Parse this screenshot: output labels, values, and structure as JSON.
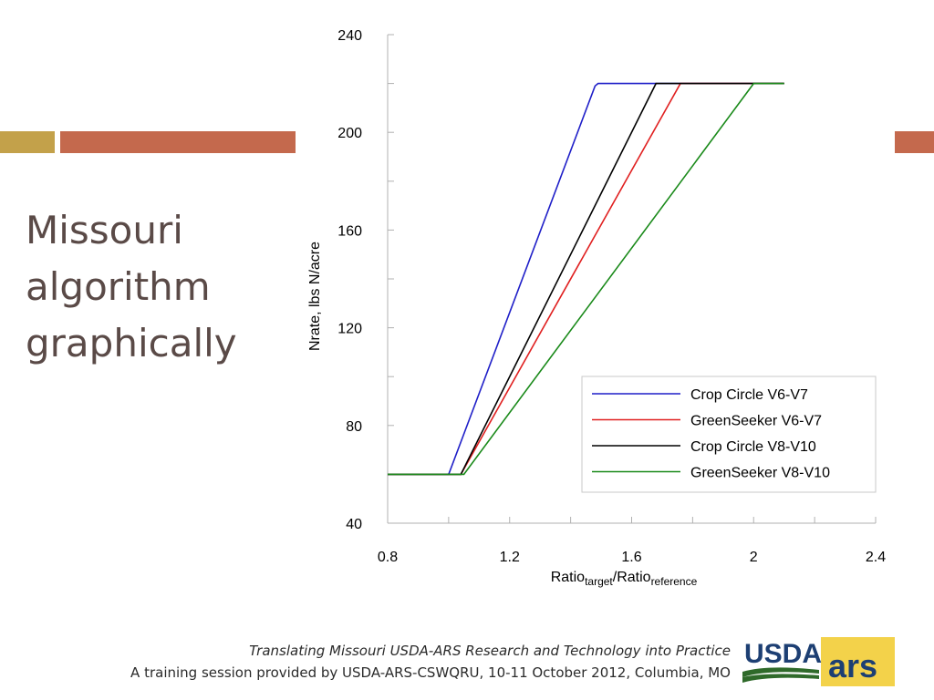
{
  "slide": {
    "title_lines": [
      "Missouri",
      "algorithm",
      "graphically"
    ],
    "footer_line1": "Translating Missouri USDA-ARS Research and Technology into Practice",
    "footer_line2": "A training session provided by USDA-ARS-CSWQRU, 10-11 October 2012, Columbia, MO",
    "logo_text_left": "USDA",
    "logo_text_right": "ars",
    "colors": {
      "accent_gold": "#C3A14A",
      "accent_rust": "#C4694D",
      "title_text": "#5a4a47"
    }
  },
  "chart_data": {
    "type": "line",
    "title": "",
    "ylabel": "Nrate, lbs N/acre",
    "xlabel_main": "Ratio",
    "xlabel_sub1": "target",
    "xlabel_mid": "/Ratio",
    "xlabel_sub2": "reference",
    "xlim": [
      0.8,
      2.4
    ],
    "ylim": [
      40,
      240
    ],
    "xticks": [
      0.8,
      1.2,
      1.6,
      2,
      2.4
    ],
    "xtick_labels": [
      "0.8",
      "1.2",
      "1.6",
      "2",
      "2.4"
    ],
    "yticks": [
      40,
      80,
      120,
      160,
      200,
      240
    ],
    "ytick_labels": [
      "40",
      "80",
      "120",
      "160",
      "200",
      "240"
    ],
    "grid": false,
    "legend_position": "bottom-right",
    "series": [
      {
        "name": "Crop Circle V6-V7",
        "color": "#1f1fc8",
        "x": [
          0.8,
          1.0,
          1.48,
          1.49,
          2.1
        ],
        "y": [
          60,
          60,
          219,
          220,
          220
        ]
      },
      {
        "name": "GreenSeeker V6-V7",
        "color": "#e02020",
        "x": [
          0.8,
          1.04,
          1.76,
          2.1
        ],
        "y": [
          60,
          60,
          220,
          220
        ]
      },
      {
        "name": "Crop Circle V8-V10",
        "color": "#000000",
        "x": [
          0.8,
          1.04,
          1.68,
          2.1
        ],
        "y": [
          60,
          60,
          220,
          220
        ]
      },
      {
        "name": "GreenSeeker V8-V10",
        "color": "#1a8a1a",
        "x": [
          0.8,
          1.05,
          2.0,
          2.1
        ],
        "y": [
          60,
          60,
          220,
          220
        ]
      }
    ]
  }
}
